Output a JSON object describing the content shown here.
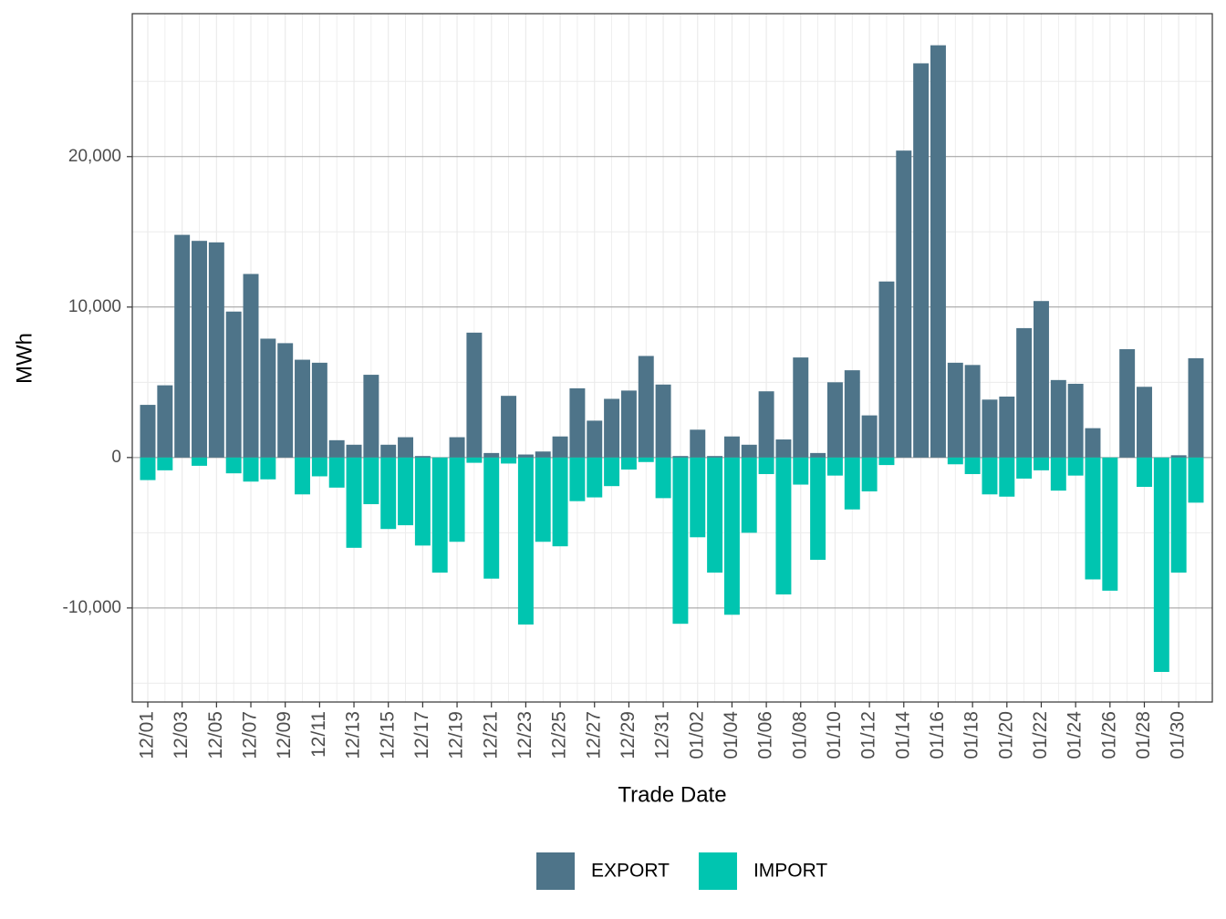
{
  "chart_data": {
    "type": "bar",
    "stacked": false,
    "x_label": "Trade Date",
    "y_label": "MWh",
    "categories": [
      "12/01",
      null,
      "12/03",
      null,
      "12/05",
      null,
      "12/07",
      null,
      "12/09",
      null,
      "12/11",
      null,
      "12/13",
      null,
      "12/15",
      null,
      "12/17",
      null,
      "12/19",
      null,
      "12/21",
      null,
      "12/23",
      null,
      "12/25",
      null,
      "12/27",
      null,
      "12/29",
      null,
      "12/31",
      null,
      "01/02",
      null,
      "01/04",
      null,
      "01/06",
      null,
      "01/08",
      null,
      "01/10",
      null,
      "01/12",
      null,
      "01/14",
      null,
      "01/16",
      null,
      "01/18",
      null,
      "01/20",
      null,
      "01/22",
      null,
      "01/24",
      null,
      "01/26",
      null,
      "01/28",
      null,
      "01/30",
      null
    ],
    "series": [
      {
        "name": "EXPORT",
        "color": "#4e7489",
        "values": [
          3500,
          4800,
          14800,
          14400,
          14300,
          9700,
          12200,
          7900,
          7600,
          6500,
          6300,
          1150,
          850,
          5500,
          850,
          1350,
          100,
          0,
          1350,
          8300,
          300,
          4100,
          200,
          400,
          1400,
          4600,
          2450,
          3900,
          4450,
          6750,
          4850,
          100,
          1850,
          100,
          1400,
          850,
          4400,
          1200,
          6650,
          300,
          5000,
          5800,
          2800,
          11700,
          20400,
          26200,
          27400,
          6300,
          6150,
          3850,
          4050,
          8600,
          10400,
          5150,
          4900,
          1950,
          0,
          7200,
          4700,
          0,
          150,
          6600
        ]
      },
      {
        "name": "IMPORT",
        "color": "#00c5b0",
        "values": [
          -1500,
          -850,
          0,
          -550,
          0,
          -1050,
          -1600,
          -1450,
          0,
          -2450,
          -1250,
          -2000,
          -6000,
          -3100,
          -4750,
          -4500,
          -5850,
          -7650,
          -5600,
          -350,
          -8050,
          -400,
          -11100,
          -5600,
          -5900,
          -2900,
          -2650,
          -1900,
          -800,
          -300,
          -2700,
          -11050,
          -5300,
          -7650,
          -10450,
          -5000,
          -1100,
          -9100,
          -1800,
          -6800,
          -1200,
          -3450,
          -2250,
          -500,
          0,
          0,
          0,
          -450,
          -1100,
          -2450,
          -2600,
          -1400,
          -850,
          -2200,
          -1200,
          -8100,
          -8850,
          0,
          -1950,
          -14250,
          -7650,
          -3000
        ]
      }
    ],
    "ylim": [
      -16250,
      29500
    ],
    "yticks": [
      {
        "value": -10000,
        "label": "-10,000"
      },
      0,
      {
        "value": 10000,
        "label": "10,000"
      },
      {
        "value": 20000,
        "label": "20,000"
      }
    ],
    "yminor_ticks": [
      -15000,
      -5000,
      5000,
      15000,
      25000
    ],
    "grid": true,
    "legend_position": "bottom"
  }
}
